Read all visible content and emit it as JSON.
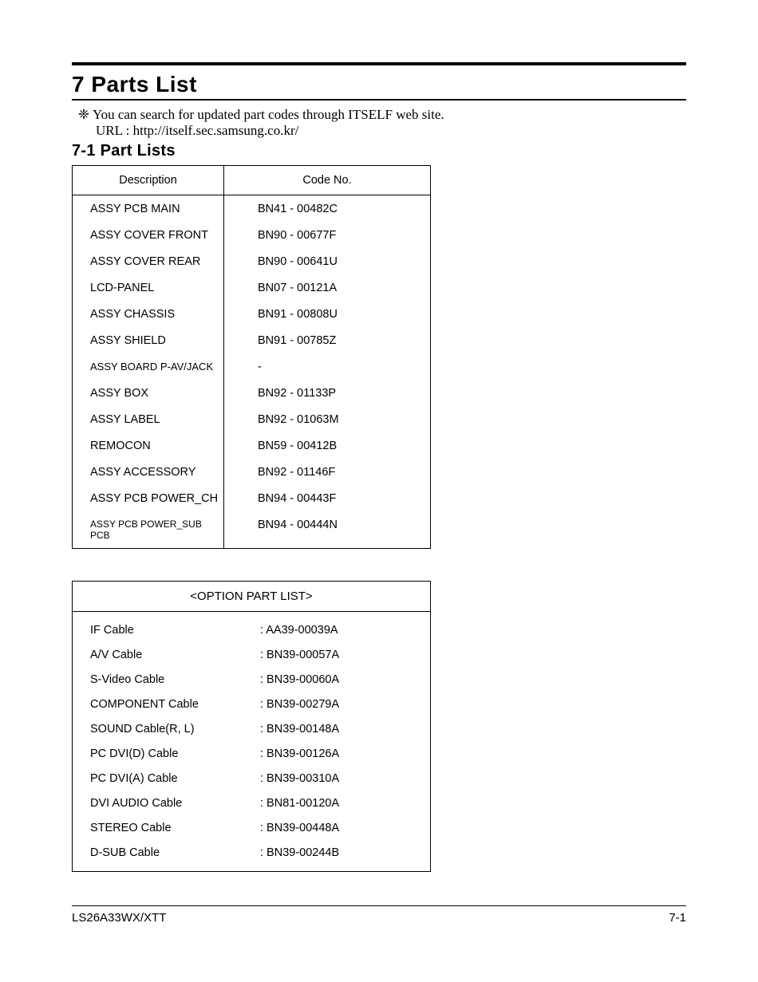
{
  "header": {
    "title": "7 Parts List",
    "note_icon": "❈",
    "note_text": "You can search for updated part codes through ITSELF web site.",
    "url_label": "URL : http://itself.sec.samsung.co.kr/",
    "subheading": "7-1 Part Lists"
  },
  "table1": {
    "col1": "Description",
    "col2": "Code No.",
    "rows": [
      {
        "desc": "ASSY PCB MAIN",
        "code": "BN41 - 00482C",
        "cls": ""
      },
      {
        "desc": "ASSY COVER FRONT",
        "code": "BN90 - 00677F",
        "cls": ""
      },
      {
        "desc": "ASSY COVER REAR",
        "code": "BN90 - 00641U",
        "cls": ""
      },
      {
        "desc": "LCD-PANEL",
        "code": "BN07 - 00121A",
        "cls": ""
      },
      {
        "desc": "ASSY CHASSIS",
        "code": "BN91 - 00808U",
        "cls": ""
      },
      {
        "desc": "ASSY SHIELD",
        "code": "BN91 - 00785Z",
        "cls": ""
      },
      {
        "desc": "ASSY BOARD P-AV/JACK",
        "code": "-",
        "cls": "small"
      },
      {
        "desc": "ASSY BOX",
        "code": "BN92 - 01133P",
        "cls": ""
      },
      {
        "desc": "ASSY LABEL",
        "code": "BN92 - 01063M",
        "cls": ""
      },
      {
        "desc": "REMOCON",
        "code": "BN59 - 00412B",
        "cls": ""
      },
      {
        "desc": "ASSY ACCESSORY",
        "code": "BN92 - 01146F",
        "cls": ""
      },
      {
        "desc": "ASSY PCB POWER_CH",
        "code": "BN94 - 00443F",
        "cls": ""
      },
      {
        "desc": "ASSY PCB POWER_SUB PCB",
        "code": "BN94 - 00444N",
        "cls": "xsmall"
      }
    ]
  },
  "table2": {
    "title": "<OPTION PART LIST>",
    "rows": [
      {
        "desc": "IF Cable",
        "code": ": AA39-00039A"
      },
      {
        "desc": "A/V Cable",
        "code": ": BN39-00057A"
      },
      {
        "desc": "S-Video Cable",
        "code": ": BN39-00060A"
      },
      {
        "desc": "COMPONENT Cable",
        "code": ": BN39-00279A"
      },
      {
        "desc": "SOUND Cable(R, L)",
        "code": ": BN39-00148A"
      },
      {
        "desc": "PC DVI(D) Cable",
        "code": ": BN39-00126A"
      },
      {
        "desc": "PC DVI(A) Cable",
        "code": ": BN39-00310A"
      },
      {
        "desc": "DVI AUDIO Cable",
        "code": ": BN81-00120A"
      },
      {
        "desc": "STEREO Cable",
        "code": ": BN39-00448A"
      },
      {
        "desc": "D-SUB Cable",
        "code": ": BN39-00244B"
      }
    ]
  },
  "footer": {
    "left": "LS26A33WX/XTT",
    "right": "7-1"
  }
}
